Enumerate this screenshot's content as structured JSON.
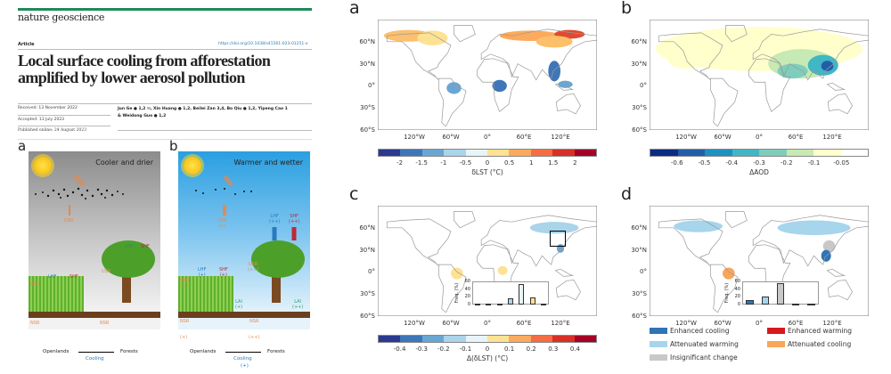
{
  "paper": {
    "journal": "nature geoscience",
    "type": "Article",
    "doi": "https://doi.org/10.1038/s41561-023-01251-x",
    "title_line1": "Local surface cooling from afforestation",
    "title_line2": "amplified by lower aerosol pollution",
    "received": "Received: 13 November 2022",
    "accepted": "Accepted: 13 July 2023",
    "published": "Published online: 24 August 2023",
    "authors_line1": "Jun Ge ● 1,2 ✉, Xin Huang ● 1,2, Beilei Zan 3,4, Bo Qiu ● 1,2, Yipeng Cao 1",
    "authors_line2": "& Weidong Guo ● 1,2"
  },
  "diagram": {
    "a": {
      "letter": "a",
      "title": "Cooler and drier",
      "dsr": "DSR",
      "lhf": "LHF",
      "shf": "SHF",
      "usr": "USR",
      "nsr": "NSR",
      "lhf2": "LHF",
      "shf2": "SHF",
      "usr2": "USR",
      "nsr2": "NSR",
      "left": "Openlands",
      "right": "Forests",
      "arrow": "Cooling"
    },
    "b": {
      "letter": "b",
      "title": "Warmer and wetter",
      "dsr": "DSR",
      "dsr_s": "(+)",
      "lhf": "LHF",
      "lhf_s": "(+)",
      "shf": "SHF",
      "shf_s": "(+)",
      "usr": "USR",
      "usr_s": "(+)",
      "nsr": "NSR",
      "nsr_s": "(+)",
      "lai": "LAI",
      "lai_s": "(+)",
      "lhf2": "LHF",
      "lhf2_s": "(++)",
      "shf2": "SHF",
      "shf2_s": "(++)",
      "usr2": "USR",
      "usr2_s": "(++)",
      "nsr2": "NSR",
      "nsr2_s": "(++)",
      "lai2": "LAI",
      "lai2_s": "(++)",
      "left": "Openlands",
      "right": "Forests",
      "arrow": "Cooling",
      "arrow_s": "(+)"
    }
  },
  "maps": {
    "lat_ticks": [
      "60°N",
      "30°N",
      "0°",
      "30°S",
      "60°S"
    ],
    "lon_ticks": [
      "120°W",
      "60°W",
      "0°",
      "60°E",
      "120°E"
    ],
    "a": {
      "letter": "a",
      "caption": "δLST (°C)",
      "ticks": [
        "-2",
        "-1.5",
        "-1",
        "-0.5",
        "0",
        "0.5",
        "1",
        "1.5",
        "2"
      ]
    },
    "b": {
      "letter": "b",
      "caption": "ΔAOD",
      "ticks": [
        "-0.6",
        "-0.5",
        "-0.4",
        "-0.3",
        "-0.2",
        "-0.1",
        "-0.05"
      ]
    },
    "c": {
      "letter": "c",
      "caption": "Δ(δLST) (°C)",
      "ticks": [
        "-0.4",
        "-0.3",
        "-0.2",
        "-0.1",
        "0",
        "0.1",
        "0.2",
        "0.3",
        "0.4"
      ]
    },
    "d": {
      "letter": "d",
      "legend": [
        "Enhanced cooling",
        "Enhanced warming",
        "Attenuated warming",
        "Attenuated cooling",
        "Insignificant change"
      ]
    }
  },
  "colors": {
    "div": [
      "#2b3990",
      "#3e76b8",
      "#6aa6d3",
      "#a9d4ea",
      "#e8f4f8",
      "#fde293",
      "#fcaa5e",
      "#f46d43",
      "#d73027",
      "#a50026"
    ],
    "aod": [
      "#0c2c84",
      "#225ea8",
      "#1d91c0",
      "#41b6c4",
      "#7fcdbb",
      "#c7e9b4",
      "#ffffcc",
      "#ffffff"
    ],
    "leg": [
      "#2f74b5",
      "#d7191c",
      "#a6d5ec",
      "#f7a65a",
      "#c8c8c8"
    ]
  },
  "chart_data": [
    {
      "type": "bar",
      "panel": "c-inset",
      "ylabel": "Freq. (%)",
      "ylim": [
        0,
        60
      ],
      "yticks": [
        "0",
        "20",
        "40",
        "60"
      ],
      "values": [
        0.5,
        1,
        3,
        17,
        57,
        20,
        2
      ],
      "colors": [
        "#2b3990",
        "#3e76b8",
        "#6aa6d3",
        "#a9d4ea",
        "#e8f4f8",
        "#fde293",
        "#d73027"
      ]
    },
    {
      "type": "bar",
      "panel": "d-inset",
      "ylabel": "Freq. (%)",
      "ylim": [
        0,
        60
      ],
      "yticks": [
        "0",
        "20",
        "40",
        "60"
      ],
      "values": [
        12,
        22,
        60,
        2,
        1
      ],
      "colors": [
        "#2f74b5",
        "#a6d5ec",
        "#c8c8c8",
        "#d7191c",
        "#f7a65a"
      ]
    }
  ]
}
